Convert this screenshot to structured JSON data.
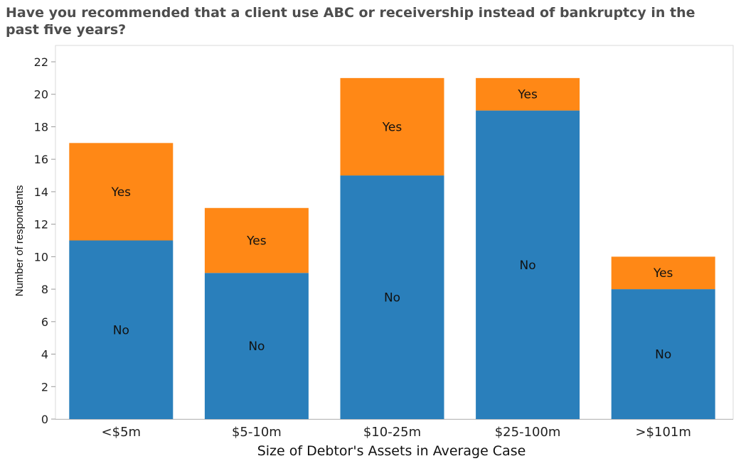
{
  "chart_data": {
    "type": "bar",
    "stacked": true,
    "title": "Have you recommended that a client use ABC or receivership instead of bankruptcy in the past five years?",
    "xlabel": "Size of Debtor's Assets in Average Case",
    "ylabel": "Number of respondents",
    "ylim": [
      0,
      22
    ],
    "yticks": [
      0,
      2,
      4,
      6,
      8,
      10,
      12,
      14,
      16,
      18,
      20,
      22
    ],
    "grid": false,
    "categories": [
      "<$5m",
      "$5-10m",
      "$10-25m",
      "$25-100m",
      ">$101m"
    ],
    "series": [
      {
        "name": "No",
        "color": "#2a7fbb",
        "values": [
          11,
          9,
          15,
          19,
          8
        ]
      },
      {
        "name": "Yes",
        "color": "#ff8816",
        "values": [
          6,
          4,
          6,
          2,
          2
        ]
      }
    ]
  }
}
